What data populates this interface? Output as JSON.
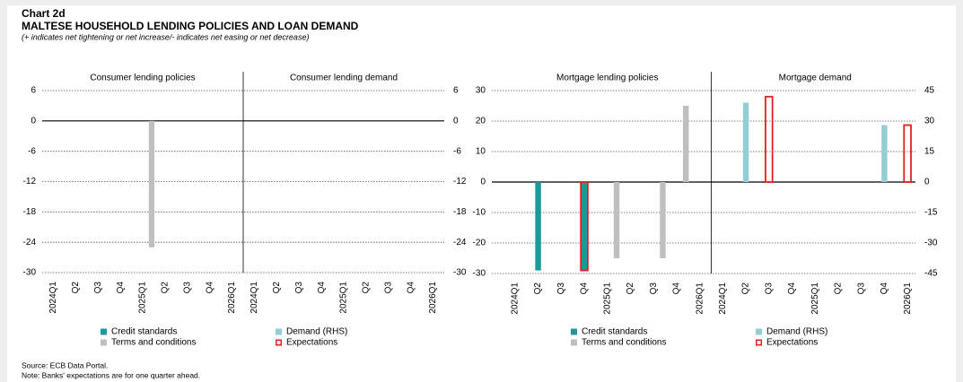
{
  "header": {
    "label": "Chart 2d",
    "title": "MALTESE HOUSEHOLD LENDING POLICIES AND LOAN DEMAND",
    "subtitle": "(+ indicates net tightening or net increase/- indicates net easing or net decrease)"
  },
  "chart_data": [
    {
      "type": "bar",
      "panels": [
        {
          "title": "Consumer lending policies",
          "axis": "y",
          "categories": [
            "2024Q1",
            "Q2",
            "Q3",
            "Q4",
            "2025Q1",
            "Q2",
            "Q3",
            "Q4",
            "2026Q1"
          ]
        },
        {
          "title": "Consumer lending demand",
          "axis": "y",
          "categories": [
            "2024Q1",
            "Q2",
            "Q3",
            "Q4",
            "2025Q1",
            "Q2",
            "Q3",
            "Q4",
            "2026Q1"
          ]
        }
      ],
      "series": [
        {
          "name": "Credit standards",
          "color": "#1a9a9a",
          "values": [
            null,
            null,
            null,
            null,
            null,
            null,
            null,
            null,
            null,
            null,
            null,
            null,
            null,
            null,
            null,
            null,
            null,
            null
          ]
        },
        {
          "name": "Demand (RHS)",
          "color": "#93cdd5",
          "values": [
            null,
            null,
            null,
            null,
            null,
            null,
            null,
            null,
            null,
            null,
            null,
            null,
            null,
            null,
            null,
            null,
            null,
            null
          ]
        },
        {
          "name": "Terms and conditions",
          "color": "#bfbfbf",
          "values": [
            null,
            null,
            null,
            null,
            -25,
            null,
            null,
            null,
            null,
            null,
            null,
            null,
            null,
            null,
            null,
            null,
            null,
            null
          ]
        },
        {
          "name": "Expectations",
          "color": "#e02020",
          "outline": true,
          "values": [
            null,
            null,
            null,
            null,
            null,
            null,
            null,
            null,
            null,
            null,
            null,
            null,
            null,
            null,
            null,
            null,
            null,
            null
          ]
        }
      ],
      "ylim": [
        -30,
        6
      ],
      "yticks": [
        6,
        0,
        -6,
        -12,
        -18,
        -24,
        -30
      ],
      "y2lim": [
        -30,
        6
      ],
      "y2ticks": [
        6,
        0,
        -6,
        -12,
        -18,
        -24,
        -30
      ],
      "grid": true
    },
    {
      "type": "bar",
      "panels": [
        {
          "title": "Mortgage lending policies",
          "axis": "y",
          "categories": [
            "2024Q1",
            "Q2",
            "Q3",
            "Q4",
            "2025Q1",
            "Q2",
            "Q3",
            "Q4",
            "2026Q1"
          ]
        },
        {
          "title": "Mortgage demand",
          "axis": "y2",
          "categories": [
            "2024Q1",
            "Q2",
            "Q3",
            "Q4",
            "2025Q1",
            "Q2",
            "Q3",
            "Q4",
            "2026Q1"
          ]
        }
      ],
      "series": [
        {
          "name": "Credit standards",
          "color": "#1a9a9a",
          "values": [
            null,
            -29,
            null,
            -29,
            null,
            null,
            null,
            null,
            null,
            null,
            null,
            null,
            null,
            null,
            null,
            null,
            null,
            null
          ]
        },
        {
          "name": "Demand (RHS)",
          "color": "#93cdd5",
          "values": [
            null,
            null,
            null,
            null,
            null,
            null,
            null,
            null,
            null,
            null,
            39,
            null,
            null,
            null,
            null,
            null,
            28,
            null
          ]
        },
        {
          "name": "Terms and conditions",
          "color": "#bfbfbf",
          "values": [
            null,
            null,
            null,
            null,
            -25,
            null,
            -25,
            25,
            null,
            null,
            null,
            null,
            null,
            null,
            null,
            null,
            null,
            null
          ]
        },
        {
          "name": "Expectations",
          "color": "#e02020",
          "outline": true,
          "values": [
            null,
            null,
            null,
            -29,
            null,
            null,
            null,
            null,
            null,
            null,
            null,
            42,
            null,
            null,
            null,
            null,
            null,
            28
          ]
        }
      ],
      "ylim": [
        -30,
        30
      ],
      "yticks": [
        30,
        20,
        10,
        0,
        -10,
        -20,
        -30
      ],
      "y2lim": [
        -45,
        45
      ],
      "y2ticks": [
        45,
        30,
        15,
        0,
        -15,
        -30,
        -45
      ],
      "grid": true
    }
  ],
  "footer": {
    "source": "Source: ECB Data Portal.",
    "note": "Note: Banks' expectations are for one quarter ahead."
  }
}
